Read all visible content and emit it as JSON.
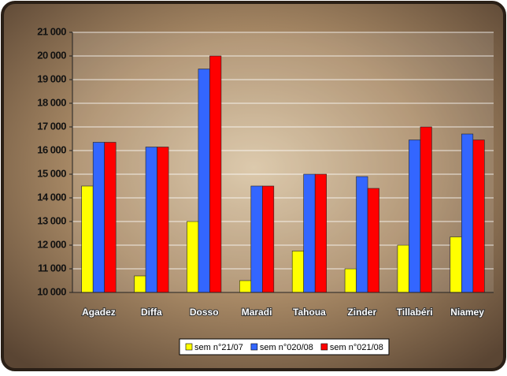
{
  "chart_data": {
    "type": "bar",
    "categories": [
      "Agadez",
      "Diffa",
      "Dosso",
      "Maradi",
      "Tahoua",
      "Zinder",
      "Tillabéri",
      "Niamey"
    ],
    "series": [
      {
        "name": "sem n°21/07",
        "color": "#ffff00",
        "values": [
          14500,
          10700,
          13000,
          10500,
          11750,
          11000,
          12000,
          12350
        ]
      },
      {
        "name": "sem n°020/08",
        "color": "#3366ff",
        "values": [
          16350,
          16150,
          19450,
          14500,
          15000,
          14900,
          16450,
          16700
        ]
      },
      {
        "name": "sem n°021/08",
        "color": "#ff0000",
        "values": [
          16350,
          16150,
          20000,
          14500,
          15000,
          14400,
          17000,
          16450
        ]
      }
    ],
    "ylim": [
      10000,
      21000
    ],
    "yticks": [
      {
        "value": 10000,
        "label": "10 000"
      },
      {
        "value": 11000,
        "label": "11 000"
      },
      {
        "value": 12000,
        "label": "12 000"
      },
      {
        "value": 13000,
        "label": "13 000"
      },
      {
        "value": 14000,
        "label": "14 000"
      },
      {
        "value": 15000,
        "label": "15 000"
      },
      {
        "value": 16000,
        "label": "16 000"
      },
      {
        "value": 17000,
        "label": "17 000"
      },
      {
        "value": 18000,
        "label": "18 000"
      },
      {
        "value": 19000,
        "label": "19 000"
      },
      {
        "value": 20000,
        "label": "20 000"
      },
      {
        "value": 21000,
        "label": "21 000"
      }
    ],
    "grid": true,
    "legend": "bottom"
  }
}
